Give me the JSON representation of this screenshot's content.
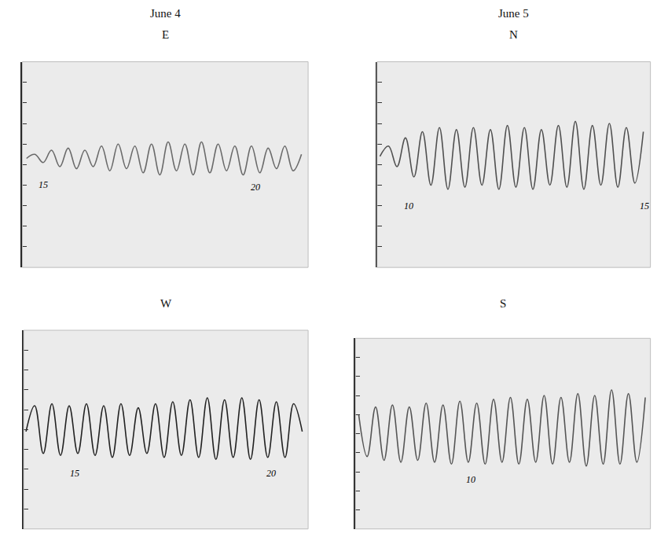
{
  "chart_data": [
    {
      "type": "line",
      "title": "June 4",
      "subtitle": "E",
      "color": "#6a6a6a",
      "tick_labels": false,
      "xlim": [
        14.4,
        21.26
      ],
      "ylim": [
        0,
        10
      ],
      "yticks": [
        0,
        1,
        2,
        3,
        4,
        5,
        6,
        7,
        8,
        9,
        10
      ],
      "x": [
        14.5,
        14.7,
        14.9,
        15.1,
        15.3,
        15.5,
        15.7,
        15.9,
        16.1,
        16.3,
        16.5,
        16.7,
        16.9,
        17.1,
        17.3,
        17.5,
        17.7,
        17.9,
        18.1,
        18.3,
        18.5,
        18.7,
        18.9,
        19.1,
        19.3,
        19.5,
        19.7,
        19.9,
        20.1,
        20.3,
        20.5,
        20.7,
        20.9,
        21.1
      ],
      "values": [
        5.3,
        5.5,
        5.1,
        5.7,
        4.9,
        5.8,
        4.8,
        5.7,
        4.9,
        5.9,
        4.7,
        6.0,
        4.8,
        5.9,
        4.6,
        6.0,
        4.5,
        6.1,
        4.7,
        6.0,
        4.5,
        6.1,
        4.6,
        6.0,
        4.7,
        5.9,
        4.5,
        5.9,
        4.6,
        5.8,
        4.8,
        5.9,
        4.7,
        5.5
      ],
      "annotations": [
        {
          "text": "15",
          "x": 14.9,
          "y": 4.0
        },
        {
          "text": "20",
          "x": 20.0,
          "y": 3.9
        }
      ]
    },
    {
      "type": "line",
      "title": "June 5",
      "subtitle": "N",
      "color": "#505050",
      "tick_labels": false,
      "xlim": [
        9.34,
        15.13
      ],
      "ylim": [
        0,
        10
      ],
      "yticks": [
        0,
        1,
        2,
        3,
        4,
        5,
        6,
        7,
        8,
        9,
        10
      ],
      "x": [
        9.4,
        9.58,
        9.76,
        9.94,
        10.12,
        10.3,
        10.48,
        10.66,
        10.84,
        11.02,
        11.2,
        11.38,
        11.56,
        11.74,
        11.92,
        12.1,
        12.28,
        12.46,
        12.64,
        12.82,
        13.0,
        13.18,
        13.36,
        13.54,
        13.72,
        13.9,
        14.08,
        14.26,
        14.44,
        14.62,
        14.8,
        14.98
      ],
      "values": [
        5.4,
        5.9,
        4.9,
        6.3,
        4.4,
        6.6,
        4.0,
        6.8,
        3.8,
        6.7,
        3.9,
        6.8,
        4.0,
        6.7,
        3.8,
        6.9,
        3.9,
        6.8,
        3.8,
        6.7,
        4.0,
        6.9,
        3.9,
        7.1,
        3.8,
        6.9,
        4.0,
        7.0,
        3.9,
        6.8,
        4.1,
        6.6
      ],
      "annotations": [
        {
          "text": "10",
          "x": 10.0,
          "y": 3.0
        },
        {
          "text": "15",
          "x": 15.0,
          "y": 3.0
        }
      ]
    },
    {
      "type": "line",
      "subtitle": "W",
      "color": "#222222",
      "tick_labels": false,
      "xlim": [
        13.7,
        20.95
      ],
      "ylim": [
        0,
        10
      ],
      "yticks": [
        0,
        1,
        2,
        3,
        4,
        5,
        6,
        7,
        8,
        9,
        10
      ],
      "x": [
        13.76,
        13.98,
        14.2,
        14.42,
        14.64,
        14.86,
        15.08,
        15.3,
        15.52,
        15.74,
        15.96,
        16.18,
        16.4,
        16.62,
        16.84,
        17.06,
        17.28,
        17.5,
        17.72,
        17.94,
        18.16,
        18.38,
        18.6,
        18.82,
        19.04,
        19.26,
        19.48,
        19.7,
        19.92,
        20.14,
        20.36,
        20.58,
        20.8
      ],
      "values": [
        4.9,
        6.2,
        3.8,
        6.3,
        3.7,
        6.2,
        3.8,
        6.3,
        3.7,
        6.2,
        3.6,
        6.3,
        3.7,
        6.1,
        3.8,
        6.3,
        3.6,
        6.4,
        3.7,
        6.5,
        3.6,
        6.6,
        3.5,
        6.5,
        3.6,
        6.6,
        3.5,
        6.5,
        3.6,
        6.4,
        3.6,
        6.3,
        4.9
      ],
      "annotations": [
        {
          "text": "15",
          "x": 15.0,
          "y": 2.8
        },
        {
          "text": "20",
          "x": 20.0,
          "y": 2.8
        }
      ]
    },
    {
      "type": "line",
      "subtitle": "S",
      "color": "#555555",
      "tick_labels": false,
      "xlim": [
        7.53,
        13.83
      ],
      "ylim": [
        0,
        10
      ],
      "yticks": [
        0,
        1,
        2,
        3,
        4,
        5,
        6,
        7,
        8,
        9,
        10
      ],
      "x": [
        7.6,
        7.78,
        7.96,
        8.14,
        8.32,
        8.5,
        8.68,
        8.86,
        9.04,
        9.22,
        9.4,
        9.58,
        9.76,
        9.94,
        10.12,
        10.3,
        10.48,
        10.66,
        10.84,
        11.02,
        11.2,
        11.38,
        11.56,
        11.74,
        11.92,
        12.1,
        12.28,
        12.46,
        12.64,
        12.82,
        13.0,
        13.18,
        13.36,
        13.54,
        13.72
      ],
      "values": [
        6.0,
        3.8,
        6.4,
        3.6,
        6.5,
        3.5,
        6.4,
        3.6,
        6.6,
        3.5,
        6.5,
        3.4,
        6.7,
        3.5,
        6.6,
        3.4,
        6.8,
        3.5,
        6.9,
        3.4,
        6.8,
        3.5,
        7.0,
        3.4,
        6.9,
        3.5,
        7.1,
        3.3,
        7.0,
        3.4,
        7.3,
        3.4,
        7.1,
        3.5,
        6.9
      ],
      "annotations": [
        {
          "text": "10",
          "x": 10.0,
          "y": 2.6
        }
      ]
    }
  ]
}
